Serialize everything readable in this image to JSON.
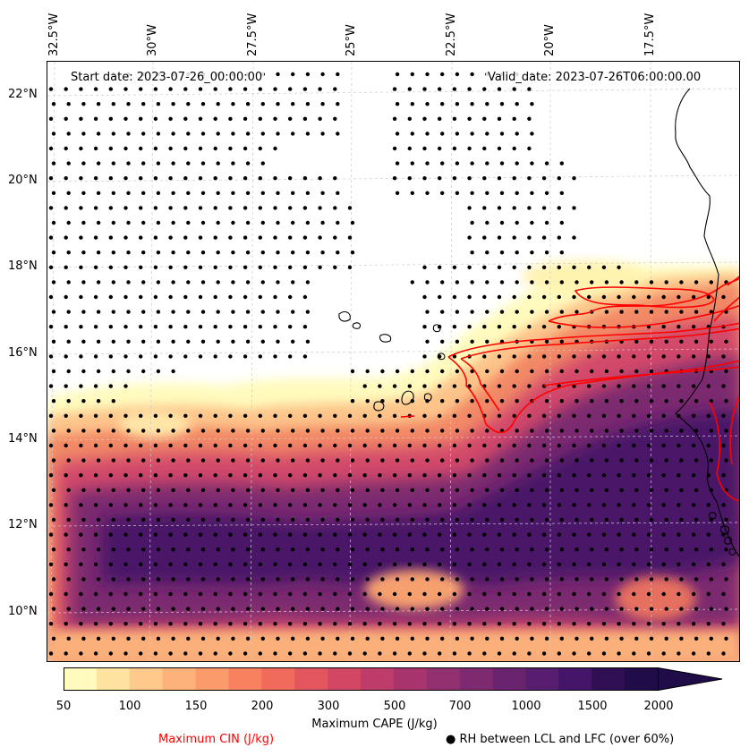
{
  "map": {
    "start_date": "Start date: 2023-07-26_00:00:00",
    "valid_date": "Valid_date: 2023-07-26T06:00:00.00",
    "longitude_labels": [
      "32.5°W",
      "30°W",
      "27.5°W",
      "25°W",
      "22.5°W",
      "20°W",
      "17.5°W"
    ],
    "latitude_labels": [
      "22°N",
      "20°N",
      "18°N",
      "16°N",
      "14°N",
      "12°N",
      "10°N"
    ],
    "lon_range": [
      -32.5,
      -15.2
    ],
    "lat_range": [
      8.9,
      22.8
    ],
    "variable": "Maximum CAPE (J/kg)",
    "colors": {
      "cin_contour": "#ff0000",
      "coastline": "#000000",
      "gridline": "#cccccc"
    }
  },
  "colorbar": {
    "label": "Maximum CAPE (J/kg)",
    "tick_labels": [
      "50",
      "100",
      "150",
      "200",
      "300",
      "500",
      "700",
      "1000",
      "1500",
      "2000"
    ],
    "colors": [
      "#fffbbd",
      "#fee2a0",
      "#fec98a",
      "#fdb27a",
      "#fb9a6a",
      "#f8825f",
      "#f06b5b",
      "#e3565e",
      "#d24763",
      "#bd3c69",
      "#a8346d",
      "#93306f",
      "#7e2a70",
      "#6a246f",
      "#571d6e",
      "#441568",
      "#310f55",
      "#1f0c48"
    ],
    "extend": "max"
  },
  "legend": {
    "cin_label": "Maximum CIN (J/kg)",
    "cin_color": "#ff0000",
    "rh_marker": "●",
    "rh_label": "RH between LCL and LFC (over 60%)"
  }
}
